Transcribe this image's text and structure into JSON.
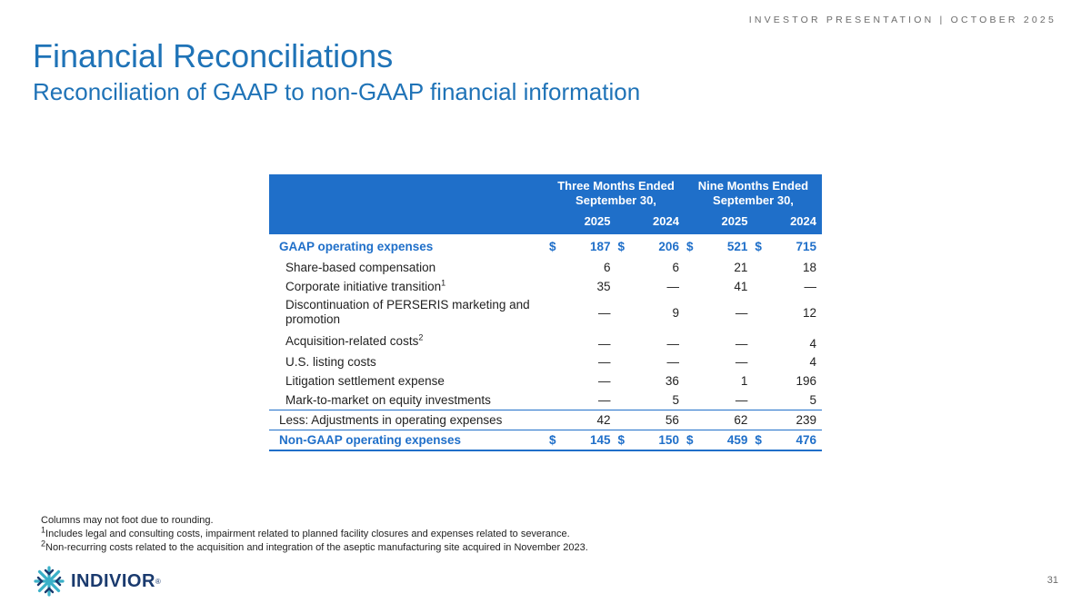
{
  "header": {
    "tag": "INVESTOR PRESENTATION | OCTOBER 2025",
    "title": "Financial Reconciliations",
    "subtitle": "Reconciliation of GAAP to non-GAAP financial information"
  },
  "table": {
    "group_headers": [
      "Three Months Ended",
      "Nine Months Ended"
    ],
    "group_subheaders": [
      "September 30,",
      "September 30,"
    ],
    "years": [
      "2025",
      "2024",
      "2025",
      "2024"
    ],
    "rows": [
      {
        "label": "GAAP operating expenses",
        "currency": "$",
        "values": [
          "187",
          "206",
          "521",
          "715"
        ]
      },
      {
        "label": "Share-based compensation",
        "values": [
          "6",
          "6",
          "21",
          "18"
        ]
      },
      {
        "label": "Corporate initiative transition",
        "sup": "1",
        "values": [
          "35",
          "—",
          "41",
          "—"
        ]
      },
      {
        "label": "Discontinuation of PERSERIS marketing and promotion",
        "values": [
          "—",
          "9",
          "—",
          "12"
        ]
      },
      {
        "label": "Acquisition-related costs",
        "sup": "2",
        "values": [
          "—",
          "—",
          "—",
          "4"
        ]
      },
      {
        "label": "U.S. listing costs",
        "values": [
          "—",
          "—",
          "—",
          "4"
        ]
      },
      {
        "label": "Litigation settlement expense",
        "values": [
          "—",
          "36",
          "1",
          "196"
        ]
      },
      {
        "label": "Mark-to-market on equity investments",
        "values": [
          "—",
          "5",
          "—",
          "5"
        ]
      },
      {
        "label": "Less: Adjustments in operating expenses",
        "values": [
          "42",
          "56",
          "62",
          "239"
        ]
      },
      {
        "label": "Non-GAAP operating expenses",
        "currency": "$",
        "values": [
          "145",
          "150",
          "459",
          "476"
        ]
      }
    ]
  },
  "notes": {
    "rounding": "Columns may not foot due to rounding.",
    "note1_mark": "1",
    "note1": "Includes legal and consulting costs, impairment related to planned facility closures and expenses related to severance.",
    "note2_mark": "2",
    "note2": "Non-recurring costs related to the acquisition and integration of the aseptic manufacturing site acquired in November 2023."
  },
  "footer": {
    "logo_text": "INDIVIOR",
    "logo_reg": "®",
    "page_number": "31"
  },
  "colors": {
    "brand_blue": "#1f73b7",
    "header_blue": "#1f6fc9",
    "logo_navy": "#1a3a6e",
    "logo_teal": "#3ab0c8"
  }
}
